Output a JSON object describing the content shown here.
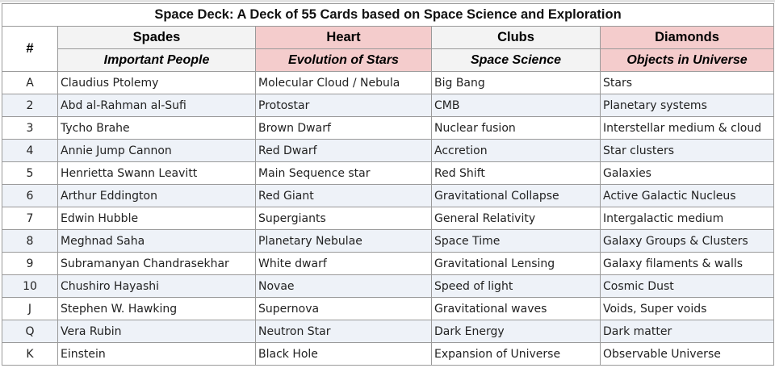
{
  "title": "Space Deck: A Deck of 55 Cards based on Space Science and Exploration",
  "header": {
    "num_label": "#",
    "suits": [
      {
        "name": "Spades",
        "category": "Important People",
        "bg": "#f3f3f3"
      },
      {
        "name": "Heart",
        "category": "Evolution of Stars",
        "bg": "#f4cccc"
      },
      {
        "name": "Clubs",
        "category": "Space Science",
        "bg": "#f3f3f3"
      },
      {
        "name": "Diamonds",
        "category": "Objects in Universe",
        "bg": "#f4cccc"
      }
    ]
  },
  "rows": [
    {
      "rank": "A",
      "cells": [
        "Claudius Ptolemy",
        "Molecular Cloud / Nebula",
        "Big Bang",
        "Stars"
      ]
    },
    {
      "rank": "2",
      "cells": [
        "Abd al-Rahman al-Sufi",
        "Protostar",
        "CMB",
        "Planetary systems"
      ]
    },
    {
      "rank": "3",
      "cells": [
        "Tycho Brahe",
        "Brown Dwarf",
        "Nuclear fusion",
        "Interstellar medium & cloud"
      ]
    },
    {
      "rank": "4",
      "cells": [
        "Annie Jump Cannon",
        "Red Dwarf",
        "Accretion",
        "Star clusters"
      ]
    },
    {
      "rank": "5",
      "cells": [
        "Henrietta Swann Leavitt",
        "Main Sequence star",
        "Red Shift",
        "Galaxies"
      ]
    },
    {
      "rank": "6",
      "cells": [
        "Arthur Eddington",
        "Red Giant",
        "Gravitational Collapse",
        "Active Galactic Nucleus"
      ]
    },
    {
      "rank": "7",
      "cells": [
        "Edwin Hubble",
        "Supergiants",
        "General Relativity",
        "Intergalactic medium"
      ]
    },
    {
      "rank": "8",
      "cells": [
        "Meghnad Saha",
        "Planetary Nebulae",
        "Space Time",
        "Galaxy Groups & Clusters"
      ]
    },
    {
      "rank": "9",
      "cells": [
        "Subramanyan Chandrasekhar",
        "White dwarf",
        "Gravitational Lensing",
        "Galaxy filaments & walls"
      ]
    },
    {
      "rank": "10",
      "cells": [
        "Chushiro Hayashi",
        "Novae",
        "Speed of light",
        "Cosmic Dust"
      ]
    },
    {
      "rank": "J",
      "cells": [
        "Stephen W. Hawking",
        "Supernova",
        "Gravitational waves",
        "Voids, Super voids"
      ]
    },
    {
      "rank": "Q",
      "cells": [
        "Vera Rubin",
        "Neutron Star",
        "Dark Energy",
        "Dark matter"
      ]
    },
    {
      "rank": "K",
      "cells": [
        "Einstein",
        "Black Hole",
        "Expansion of Universe",
        "Observable Universe"
      ]
    }
  ]
}
